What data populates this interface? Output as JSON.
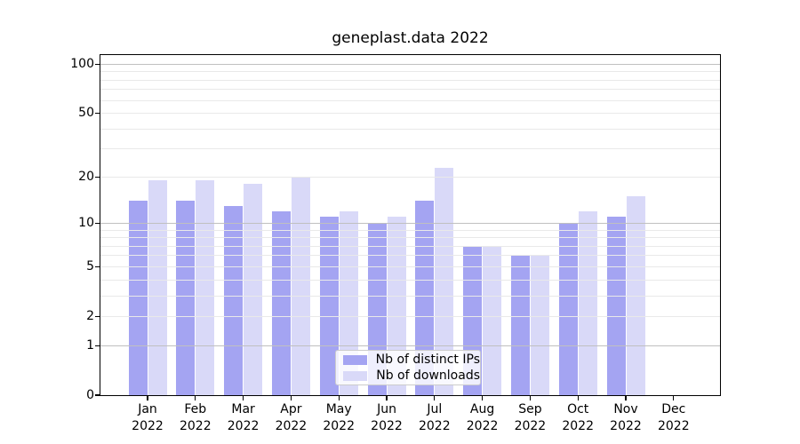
{
  "title": "geneplast.data 2022",
  "chart_data": {
    "type": "bar",
    "title": "geneplast.data 2022",
    "categories": [
      "Jan 2022",
      "Feb 2022",
      "Mar 2022",
      "Apr 2022",
      "May 2022",
      "Jun 2022",
      "Jul 2022",
      "Aug 2022",
      "Sep 2022",
      "Oct 2022",
      "Nov 2022",
      "Dec 2022"
    ],
    "series": [
      {
        "name": "Nb of distinct IPs",
        "color": "#a4a4f2",
        "values": [
          14,
          14,
          13,
          12,
          11,
          10,
          14,
          7,
          6,
          10,
          11,
          0
        ]
      },
      {
        "name": "Nb of downloads",
        "color": "#d9d9f8",
        "values": [
          19,
          19,
          18,
          20,
          12,
          11,
          23,
          7,
          6,
          12,
          15,
          0
        ]
      }
    ],
    "xlabel": "",
    "ylabel": "",
    "yscale": "log1p",
    "ylim": [
      0,
      114
    ],
    "yticks": [
      0,
      1,
      2,
      5,
      10,
      20,
      50,
      100
    ],
    "grid": {
      "major": [
        1,
        10,
        100
      ],
      "minor": [
        2,
        3,
        4,
        5,
        6,
        7,
        8,
        9,
        20,
        30,
        40,
        50,
        60,
        70,
        80,
        90
      ]
    },
    "legend_position": "lower center"
  }
}
